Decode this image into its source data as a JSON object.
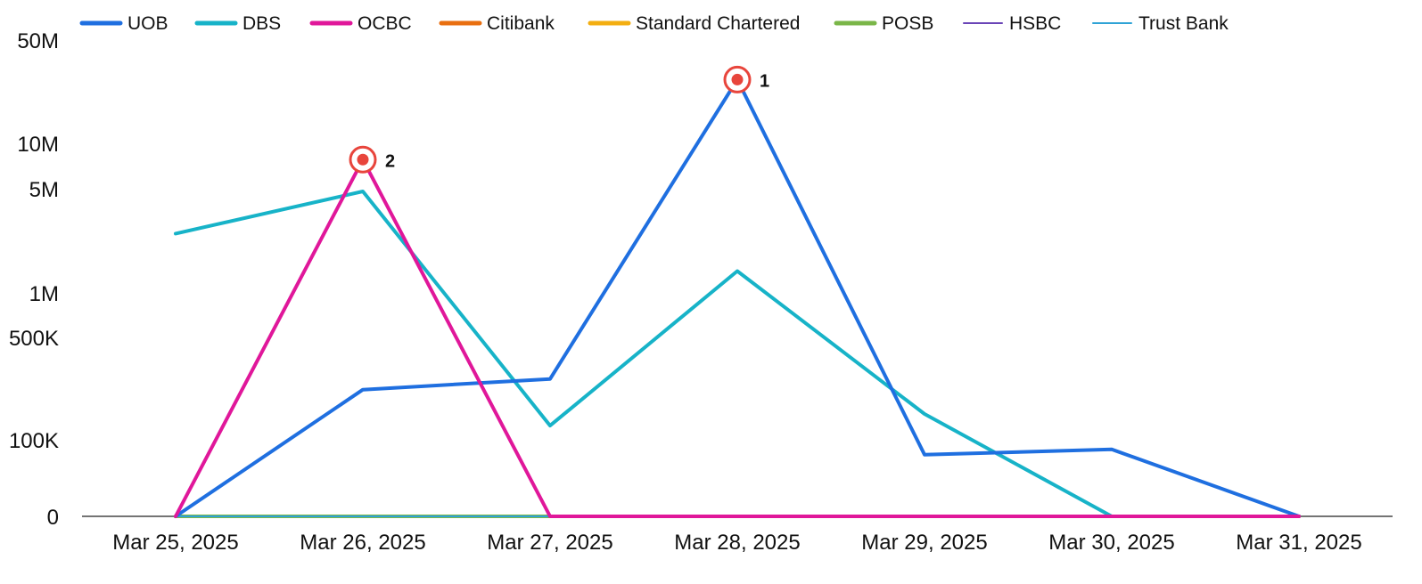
{
  "chart_data": {
    "type": "line",
    "title": "",
    "xlabel": "",
    "ylabel": "",
    "y_scale": "log-like",
    "ylim": [
      0,
      50000000
    ],
    "grid": false,
    "legend_position": "top",
    "x": [
      "Mar 25, 2025",
      "Mar 26, 2025",
      "Mar 27, 2025",
      "Mar 28, 2025",
      "Mar 29, 2025",
      "Mar 30, 2025",
      "Mar 31, 2025"
    ],
    "y_ticks": [
      {
        "value": 0,
        "label": "0"
      },
      {
        "value": 100000,
        "label": "100K"
      },
      {
        "value": 500000,
        "label": "500K"
      },
      {
        "value": 1000000,
        "label": "1M"
      },
      {
        "value": 5000000,
        "label": "5M"
      },
      {
        "value": 10000000,
        "label": "10M"
      },
      {
        "value": 50000000,
        "label": "50M"
      }
    ],
    "series": [
      {
        "name": "UOB",
        "color": "#1f6fe0",
        "values": [
          0,
          220000,
          260000,
          27000000,
          60000,
          72000,
          0
        ]
      },
      {
        "name": "DBS",
        "color": "#17b3c8",
        "values": [
          2500000,
          4800000,
          125000,
          1400000,
          150000,
          0,
          0
        ]
      },
      {
        "name": "OCBC",
        "color": "#e0179a",
        "values": [
          0,
          7800000,
          0,
          0,
          0,
          0,
          0
        ]
      },
      {
        "name": "Citibank",
        "color": "#e96f10",
        "values": [
          0,
          0,
          0,
          0,
          0,
          0,
          0
        ]
      },
      {
        "name": "Standard Chartered",
        "color": "#f3ae11",
        "values": [
          0,
          0,
          0,
          0,
          0,
          0,
          0
        ]
      },
      {
        "name": "POSB",
        "color": "#7ab648",
        "values": [
          0,
          0,
          0,
          0,
          0,
          0,
          0
        ]
      },
      {
        "name": "HSBC",
        "color": "#6a45b7",
        "values": [
          0,
          0,
          0,
          0,
          0,
          0,
          0
        ]
      },
      {
        "name": "Trust Bank",
        "color": "#2fa3d6",
        "values": [
          0,
          0,
          0,
          0,
          0,
          0,
          0
        ]
      }
    ],
    "annotations": [
      {
        "label": "1",
        "series": "UOB",
        "x": "Mar 28, 2025",
        "y": 27000000
      },
      {
        "label": "2",
        "series": "OCBC",
        "x": "Mar 26, 2025",
        "y": 7800000
      }
    ]
  },
  "colors": {
    "axis": "#222222",
    "marker_ring": "#e8453c",
    "marker_dot": "#e8453c"
  }
}
